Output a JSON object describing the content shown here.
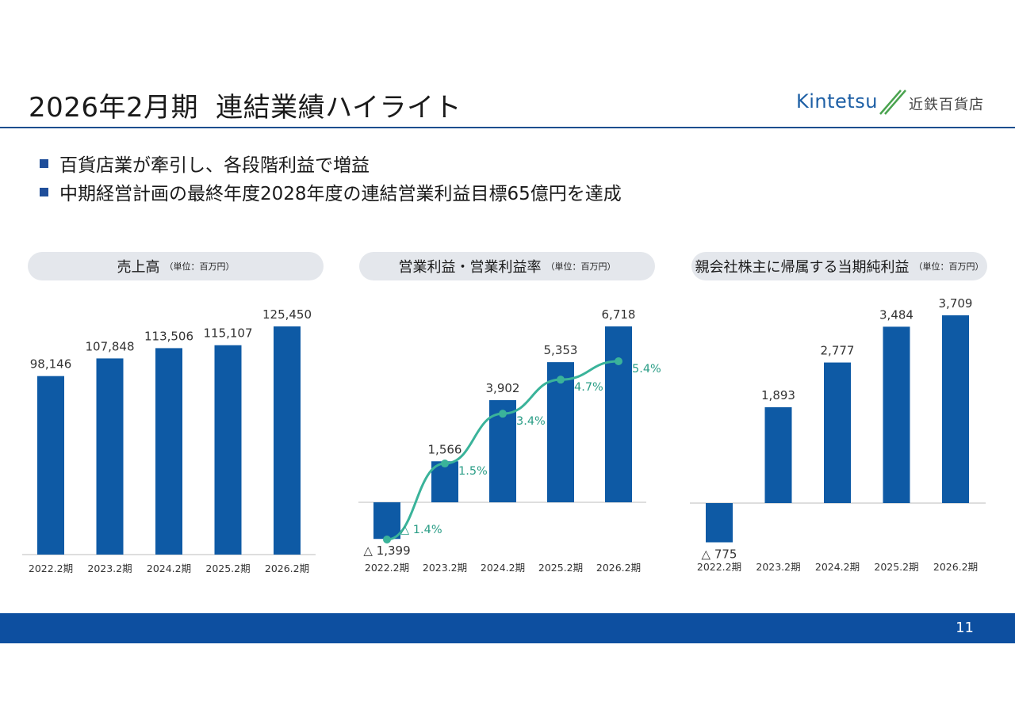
{
  "page": {
    "title_main": "2026年2月期",
    "title_sub": "連結業績ハイライト",
    "logo_text": "Kintetsu",
    "logo_jp": "近鉄百貨店",
    "page_number": "11",
    "bullets": [
      "百貨店業が牽引し、各段階利益で増益",
      "中期経営計画の最終年度2028年度の連結営業利益目標65億円を達成"
    ],
    "colors": {
      "bar": "#0e5aa5",
      "line": "#3ab39a",
      "footer": "#0d4fa0",
      "pill": "#e4e7ec"
    }
  },
  "chart_data": [
    {
      "type": "bar",
      "title": "売上高",
      "unit": "（単位：百万円）",
      "categories": [
        "2022.2期",
        "2023.2期",
        "2024.2期",
        "2025.2期",
        "2026.2期"
      ],
      "values": [
        98146,
        107848,
        113506,
        115107,
        125450
      ],
      "labels": [
        "98,146",
        "107,848",
        "113,506",
        "115,107",
        "125,450"
      ],
      "ylim": [
        0,
        125450
      ]
    },
    {
      "type": "bar",
      "title": "営業利益・営業利益率",
      "unit": "（単位：百万円）",
      "categories": [
        "2022.2期",
        "2023.2期",
        "2024.2期",
        "2025.2期",
        "2026.2期"
      ],
      "values": [
        -1399,
        1566,
        3902,
        5353,
        6718
      ],
      "labels": [
        "△ 1,399",
        "1,566",
        "3,902",
        "5,353",
        "6,718"
      ],
      "ylim": [
        -1399,
        6718
      ],
      "line_series": {
        "values": [
          -1.4,
          1.5,
          3.4,
          4.7,
          5.4
        ],
        "labels": [
          "△ 1.4%",
          "1.5%",
          "3.4%",
          "4.7%",
          "5.4%"
        ]
      }
    },
    {
      "type": "bar",
      "title": "親会社株主に帰属する当期純利益",
      "unit": "（単位：百万円）",
      "categories": [
        "2022.2期",
        "2023.2期",
        "2024.2期",
        "2025.2期",
        "2026.2期"
      ],
      "values": [
        -775,
        1893,
        2777,
        3484,
        3709
      ],
      "labels": [
        "△ 775",
        "1,893",
        "2,777",
        "3,484",
        "3,709"
      ],
      "ylim": [
        -775,
        3709
      ]
    }
  ]
}
